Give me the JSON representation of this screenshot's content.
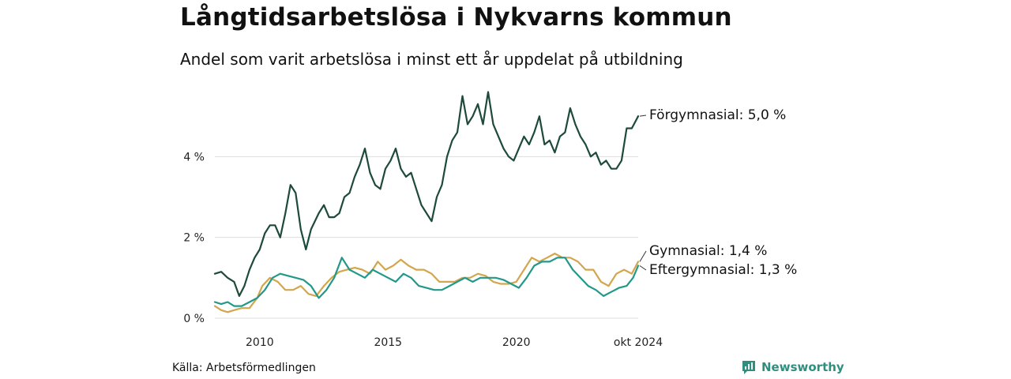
{
  "header": {
    "title": "Långtidsarbetslösa i Nykvarns kommun",
    "subtitle": "Andel som varit arbetslösa i minst ett år uppdelat på utbildning"
  },
  "footer": {
    "source": "Källa: Arbetsförmedlingen",
    "brand": "Newsworthy"
  },
  "colors": {
    "forgymnasial": "#1d4a3b",
    "gymnasial": "#d3a64e",
    "eftergymnasial": "#22988a",
    "grid": "#dddddd"
  },
  "icons": {
    "brand": "newsworthy-logo-icon"
  },
  "chart_data": {
    "type": "line",
    "title": "Långtidsarbetslösa i Nykvarns kommun",
    "subtitle": "Andel som varit arbetslösa i minst ett år uppdelat på utbildning",
    "x_unit": "year (decimal)",
    "xlim": [
      2008.25,
      2024.75
    ],
    "ylim": [
      0,
      6
    ],
    "yticks": [
      {
        "value": 0,
        "label": "0 %"
      },
      {
        "value": 2,
        "label": "2 %"
      },
      {
        "value": 4,
        "label": "4 %"
      }
    ],
    "xticks": [
      {
        "value": 2010,
        "label": "2010"
      },
      {
        "value": 2015,
        "label": "2015"
      },
      {
        "value": 2020,
        "label": "2020"
      },
      {
        "value": 2024.75,
        "label": "okt 2024"
      }
    ],
    "grid": true,
    "legend": "direct labels at line ends (right)",
    "series": [
      {
        "key": "forgymnasial",
        "name": "Förgymnasial",
        "end_label": "Förgymnasial: 5,0 %",
        "points": [
          [
            2008.25,
            1.1
          ],
          [
            2008.5,
            1.15
          ],
          [
            2008.75,
            1.0
          ],
          [
            2009.0,
            0.9
          ],
          [
            2009.2,
            0.55
          ],
          [
            2009.4,
            0.8
          ],
          [
            2009.6,
            1.2
          ],
          [
            2009.8,
            1.5
          ],
          [
            2010.0,
            1.7
          ],
          [
            2010.2,
            2.1
          ],
          [
            2010.4,
            2.3
          ],
          [
            2010.6,
            2.3
          ],
          [
            2010.8,
            2.0
          ],
          [
            2011.0,
            2.6
          ],
          [
            2011.2,
            3.3
          ],
          [
            2011.4,
            3.1
          ],
          [
            2011.6,
            2.2
          ],
          [
            2011.8,
            1.7
          ],
          [
            2012.0,
            2.2
          ],
          [
            2012.3,
            2.6
          ],
          [
            2012.5,
            2.8
          ],
          [
            2012.7,
            2.5
          ],
          [
            2012.9,
            2.5
          ],
          [
            2013.1,
            2.6
          ],
          [
            2013.3,
            3.0
          ],
          [
            2013.5,
            3.1
          ],
          [
            2013.7,
            3.5
          ],
          [
            2013.9,
            3.8
          ],
          [
            2014.1,
            4.2
          ],
          [
            2014.3,
            3.6
          ],
          [
            2014.5,
            3.3
          ],
          [
            2014.7,
            3.2
          ],
          [
            2014.9,
            3.7
          ],
          [
            2015.1,
            3.9
          ],
          [
            2015.3,
            4.2
          ],
          [
            2015.5,
            3.7
          ],
          [
            2015.7,
            3.5
          ],
          [
            2015.9,
            3.6
          ],
          [
            2016.1,
            3.2
          ],
          [
            2016.3,
            2.8
          ],
          [
            2016.5,
            2.6
          ],
          [
            2016.7,
            2.4
          ],
          [
            2016.9,
            3.0
          ],
          [
            2017.1,
            3.3
          ],
          [
            2017.3,
            4.0
          ],
          [
            2017.5,
            4.4
          ],
          [
            2017.7,
            4.6
          ],
          [
            2017.9,
            5.5
          ],
          [
            2018.1,
            4.8
          ],
          [
            2018.3,
            5.0
          ],
          [
            2018.5,
            5.3
          ],
          [
            2018.7,
            4.8
          ],
          [
            2018.9,
            5.6
          ],
          [
            2019.1,
            4.8
          ],
          [
            2019.3,
            4.5
          ],
          [
            2019.5,
            4.2
          ],
          [
            2019.7,
            4.0
          ],
          [
            2019.9,
            3.9
          ],
          [
            2020.1,
            4.2
          ],
          [
            2020.3,
            4.5
          ],
          [
            2020.5,
            4.3
          ],
          [
            2020.7,
            4.6
          ],
          [
            2020.9,
            5.0
          ],
          [
            2021.1,
            4.3
          ],
          [
            2021.3,
            4.4
          ],
          [
            2021.5,
            4.1
          ],
          [
            2021.7,
            4.5
          ],
          [
            2021.9,
            4.6
          ],
          [
            2022.1,
            5.2
          ],
          [
            2022.3,
            4.8
          ],
          [
            2022.5,
            4.5
          ],
          [
            2022.7,
            4.3
          ],
          [
            2022.9,
            4.0
          ],
          [
            2023.1,
            4.1
          ],
          [
            2023.3,
            3.8
          ],
          [
            2023.5,
            3.9
          ],
          [
            2023.7,
            3.7
          ],
          [
            2023.9,
            3.7
          ],
          [
            2024.1,
            3.9
          ],
          [
            2024.3,
            4.7
          ],
          [
            2024.5,
            4.7
          ],
          [
            2024.75,
            5.0
          ]
        ]
      },
      {
        "key": "gymnasial",
        "name": "Gymnasial",
        "end_label": "Gymnasial: 1,4 %",
        "points": [
          [
            2008.25,
            0.3
          ],
          [
            2008.5,
            0.2
          ],
          [
            2008.75,
            0.15
          ],
          [
            2009.0,
            0.2
          ],
          [
            2009.3,
            0.25
          ],
          [
            2009.6,
            0.25
          ],
          [
            2009.9,
            0.5
          ],
          [
            2010.1,
            0.8
          ],
          [
            2010.4,
            1.0
          ],
          [
            2010.7,
            0.9
          ],
          [
            2011.0,
            0.7
          ],
          [
            2011.3,
            0.7
          ],
          [
            2011.6,
            0.8
          ],
          [
            2011.9,
            0.6
          ],
          [
            2012.2,
            0.55
          ],
          [
            2012.5,
            0.8
          ],
          [
            2012.8,
            1.0
          ],
          [
            2013.1,
            1.15
          ],
          [
            2013.4,
            1.2
          ],
          [
            2013.7,
            1.25
          ],
          [
            2014.0,
            1.2
          ],
          [
            2014.3,
            1.1
          ],
          [
            2014.6,
            1.4
          ],
          [
            2014.9,
            1.2
          ],
          [
            2015.2,
            1.3
          ],
          [
            2015.5,
            1.45
          ],
          [
            2015.8,
            1.3
          ],
          [
            2016.1,
            1.2
          ],
          [
            2016.4,
            1.2
          ],
          [
            2016.7,
            1.1
          ],
          [
            2017.0,
            0.9
          ],
          [
            2017.3,
            0.9
          ],
          [
            2017.6,
            0.9
          ],
          [
            2017.9,
            1.0
          ],
          [
            2018.2,
            1.0
          ],
          [
            2018.5,
            1.1
          ],
          [
            2018.8,
            1.05
          ],
          [
            2019.1,
            0.9
          ],
          [
            2019.4,
            0.85
          ],
          [
            2019.7,
            0.85
          ],
          [
            2020.0,
            0.9
          ],
          [
            2020.3,
            1.2
          ],
          [
            2020.6,
            1.5
          ],
          [
            2020.9,
            1.4
          ],
          [
            2021.2,
            1.5
          ],
          [
            2021.5,
            1.6
          ],
          [
            2021.8,
            1.5
          ],
          [
            2022.1,
            1.5
          ],
          [
            2022.4,
            1.4
          ],
          [
            2022.7,
            1.2
          ],
          [
            2023.0,
            1.2
          ],
          [
            2023.3,
            0.9
          ],
          [
            2023.6,
            0.8
          ],
          [
            2023.9,
            1.1
          ],
          [
            2024.2,
            1.2
          ],
          [
            2024.5,
            1.1
          ],
          [
            2024.75,
            1.4
          ]
        ]
      },
      {
        "key": "eftergymnasial",
        "name": "Eftergymnasial",
        "end_label": "Eftergymnasial: 1,3 %",
        "points": [
          [
            2008.25,
            0.4
          ],
          [
            2008.5,
            0.35
          ],
          [
            2008.75,
            0.4
          ],
          [
            2009.0,
            0.3
          ],
          [
            2009.3,
            0.3
          ],
          [
            2009.6,
            0.4
          ],
          [
            2009.9,
            0.5
          ],
          [
            2010.2,
            0.7
          ],
          [
            2010.5,
            1.0
          ],
          [
            2010.8,
            1.1
          ],
          [
            2011.1,
            1.05
          ],
          [
            2011.4,
            1.0
          ],
          [
            2011.7,
            0.95
          ],
          [
            2012.0,
            0.8
          ],
          [
            2012.3,
            0.5
          ],
          [
            2012.6,
            0.7
          ],
          [
            2012.9,
            1.0
          ],
          [
            2013.2,
            1.5
          ],
          [
            2013.5,
            1.2
          ],
          [
            2013.8,
            1.1
          ],
          [
            2014.1,
            1.0
          ],
          [
            2014.4,
            1.2
          ],
          [
            2014.7,
            1.1
          ],
          [
            2015.0,
            1.0
          ],
          [
            2015.3,
            0.9
          ],
          [
            2015.6,
            1.1
          ],
          [
            2015.9,
            1.0
          ],
          [
            2016.2,
            0.8
          ],
          [
            2016.5,
            0.75
          ],
          [
            2016.8,
            0.7
          ],
          [
            2017.1,
            0.7
          ],
          [
            2017.4,
            0.8
          ],
          [
            2017.7,
            0.9
          ],
          [
            2018.0,
            1.0
          ],
          [
            2018.3,
            0.9
          ],
          [
            2018.6,
            1.0
          ],
          [
            2018.9,
            1.0
          ],
          [
            2019.2,
            1.0
          ],
          [
            2019.5,
            0.95
          ],
          [
            2019.8,
            0.85
          ],
          [
            2020.1,
            0.75
          ],
          [
            2020.4,
            1.0
          ],
          [
            2020.7,
            1.3
          ],
          [
            2021.0,
            1.4
          ],
          [
            2021.3,
            1.4
          ],
          [
            2021.6,
            1.5
          ],
          [
            2021.9,
            1.5
          ],
          [
            2022.2,
            1.2
          ],
          [
            2022.5,
            1.0
          ],
          [
            2022.8,
            0.8
          ],
          [
            2023.1,
            0.7
          ],
          [
            2023.4,
            0.55
          ],
          [
            2023.7,
            0.65
          ],
          [
            2024.0,
            0.75
          ],
          [
            2024.3,
            0.8
          ],
          [
            2024.55,
            1.0
          ],
          [
            2024.75,
            1.3
          ]
        ]
      }
    ]
  }
}
